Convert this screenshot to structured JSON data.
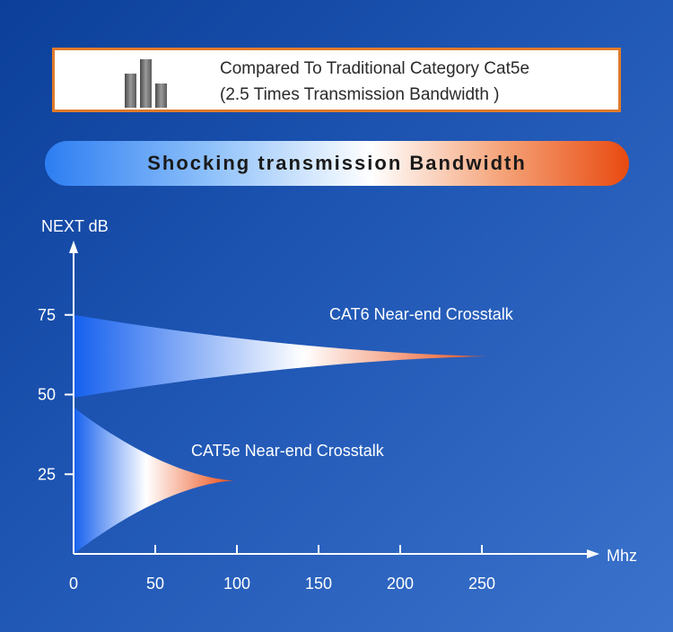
{
  "header": {
    "line1": "Compared To Traditional Category Cat5e",
    "line2": "(2.5 Times Transmission Bandwidth )",
    "icon": "bar-chart-icon"
  },
  "banner": {
    "text": "Shocking transmission Bandwidth"
  },
  "chart_data": {
    "type": "area",
    "ylabel": "NEXT dB",
    "xlabel": "Mhz",
    "x_ticks": [
      0,
      50,
      100,
      150,
      200,
      250
    ],
    "y_ticks": [
      25,
      50,
      75
    ],
    "xlim": [
      0,
      310
    ],
    "ylim": [
      0,
      90
    ],
    "grid": false,
    "series": [
      {
        "name": "CAT6 Near-end Crosstalk",
        "x_end": 253,
        "y_top_start": 75,
        "y_bottom_start": 49,
        "y_converge": 62,
        "gradient": [
          "#1560ee",
          "#ffffff",
          "#ec4a12"
        ]
      },
      {
        "name": "CAT5e Near-end Crosstalk",
        "x_end": 98,
        "y_top_start": 46,
        "y_bottom_start": 0,
        "y_converge": 23,
        "gradient": [
          "#1560ee",
          "#ffffff",
          "#ec4a12"
        ]
      }
    ]
  }
}
